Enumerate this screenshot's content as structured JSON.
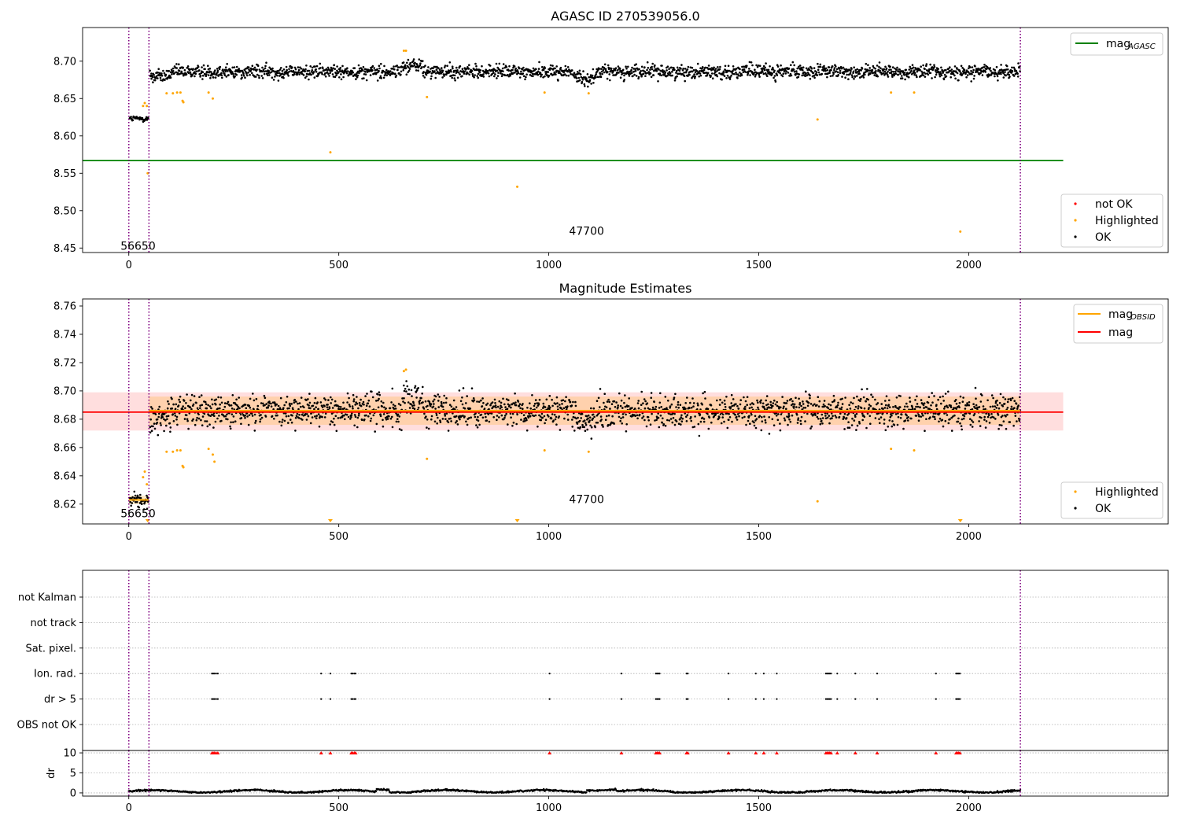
{
  "chart_data": [
    {
      "type": "scatter",
      "title": "AGASC ID 270539056.0",
      "xlim": [
        -110,
        2475
      ],
      "ylim": [
        8.444,
        8.745
      ],
      "xticks": [
        0,
        500,
        1000,
        1500,
        2000
      ],
      "yticks": [
        8.45,
        8.5,
        8.55,
        8.6,
        8.65,
        8.7
      ],
      "ytick_labels": [
        "8.45",
        "8.50",
        "8.55",
        "8.60",
        "8.65",
        "8.70"
      ],
      "mag_agasc": 8.567,
      "mag_agasc_xrange": [
        -110,
        2225
      ],
      "vlines": [
        0,
        48,
        2123
      ],
      "annotations": [
        {
          "text": "56650",
          "x": 22,
          "y": 8.452
        },
        {
          "text": "47700",
          "x": 1090,
          "y": 8.472
        }
      ],
      "ok_segments": [
        {
          "x0": 2,
          "x1": 47,
          "base": 8.623,
          "amp": 0.004
        },
        {
          "x0": 50,
          "x1": 2123,
          "base": 8.686,
          "amp": 0.009
        }
      ],
      "highlighted": [
        [
          34,
          8.64
        ],
        [
          38,
          8.644
        ],
        [
          43,
          8.64
        ],
        [
          45,
          8.55
        ],
        [
          90,
          8.657
        ],
        [
          105,
          8.657
        ],
        [
          115,
          8.658
        ],
        [
          123,
          8.658
        ],
        [
          128,
          8.647
        ],
        [
          130,
          8.645
        ],
        [
          190,
          8.658
        ],
        [
          200,
          8.65
        ],
        [
          480,
          8.578
        ],
        [
          655,
          8.714
        ],
        [
          660,
          8.714
        ],
        [
          710,
          8.652
        ],
        [
          925,
          8.532
        ],
        [
          990,
          8.658
        ],
        [
          1095,
          8.657
        ],
        [
          1640,
          8.622
        ],
        [
          1815,
          8.658
        ],
        [
          1870,
          8.658
        ],
        [
          1980,
          8.472
        ]
      ],
      "not_ok": [],
      "legend_top": [
        {
          "label": "mag",
          "sub": "AGASC",
          "color": "#008000"
        }
      ],
      "legend_bottom": [
        {
          "label": "not OK",
          "color": "#ff0000"
        },
        {
          "label": "Highlighted",
          "color": "#ffa500"
        },
        {
          "label": "OK",
          "color": "#000000"
        }
      ]
    },
    {
      "type": "scatter",
      "title": "Magnitude Estimates",
      "xlim": [
        -110,
        2475
      ],
      "ylim": [
        8.606,
        8.765
      ],
      "xticks": [
        0,
        500,
        1000,
        1500,
        2000
      ],
      "yticks": [
        8.62,
        8.64,
        8.66,
        8.68,
        8.7,
        8.72,
        8.74,
        8.76
      ],
      "ytick_labels": [
        "8.62",
        "8.64",
        "8.66",
        "8.68",
        "8.70",
        "8.72",
        "8.74",
        "8.76"
      ],
      "mag": 8.685,
      "mag_band": [
        8.672,
        8.699
      ],
      "mag_xrange": [
        -110,
        2225
      ],
      "mag_obsid_segments": [
        {
          "x0": 0,
          "x1": 47,
          "y": 8.623,
          "band": [
            8.62,
            8.626
          ]
        },
        {
          "x0": 48,
          "x1": 2123,
          "y": 8.686,
          "band": [
            8.676,
            8.696
          ]
        }
      ],
      "vlines": [
        0,
        48,
        2123
      ],
      "annotations": [
        {
          "text": "56650",
          "x": 22,
          "y": 8.613
        },
        {
          "text": "47700",
          "x": 1090,
          "y": 8.623
        }
      ],
      "ok_segments": [
        {
          "x0": 2,
          "x1": 47,
          "base": 8.623,
          "amp": 0.005
        },
        {
          "x0": 50,
          "x1": 2123,
          "base": 8.686,
          "amp": 0.011
        }
      ],
      "highlighted": [
        [
          34,
          8.639
        ],
        [
          38,
          8.643
        ],
        [
          43,
          8.634
        ],
        [
          90,
          8.657
        ],
        [
          105,
          8.657
        ],
        [
          115,
          8.658
        ],
        [
          123,
          8.658
        ],
        [
          128,
          8.647
        ],
        [
          130,
          8.646
        ],
        [
          190,
          8.659
        ],
        [
          200,
          8.655
        ],
        [
          204,
          8.65
        ],
        [
          655,
          8.714
        ],
        [
          660,
          8.715
        ],
        [
          710,
          8.652
        ],
        [
          990,
          8.658
        ],
        [
          1095,
          8.657
        ],
        [
          1640,
          8.622
        ],
        [
          1815,
          8.659
        ],
        [
          1870,
          8.658
        ]
      ],
      "clipped_markers_x": [
        45,
        480,
        925,
        1980
      ],
      "legend_top": [
        {
          "label": "mag",
          "sub": "OBSID",
          "color": "#ffa500"
        },
        {
          "label": "mag",
          "sub": "",
          "color": "#ff0000"
        }
      ],
      "legend_bottom": [
        {
          "label": "Highlighted",
          "color": "#ffa500"
        },
        {
          "label": "OK",
          "color": "#000000"
        }
      ]
    },
    {
      "type": "scatter",
      "title": "",
      "xlim": [
        -110,
        2475
      ],
      "flag_rows": [
        "not Kalman",
        "not track",
        "Sat. pixel.",
        "Ion. rad.",
        "dr > 5",
        "OBS not OK"
      ],
      "flag_x": [
        198,
        201,
        204,
        208,
        212,
        458,
        480,
        530,
        533,
        537,
        540,
        1002,
        1173,
        1255,
        1258,
        1261,
        1264,
        1328,
        1331,
        1428,
        1493,
        1512,
        1543,
        1660,
        1663,
        1666,
        1669,
        1672,
        1687,
        1730,
        1782,
        1922,
        1970,
        1973,
        1976,
        1979
      ],
      "vlines": [
        0,
        48,
        2123
      ],
      "dr": {
        "ylabel": "dr",
        "yticks": [
          0,
          5,
          10
        ],
        "ylim": [
          -0.8,
          10.6
        ],
        "cap_value": 10,
        "base": 0.4,
        "amp": 0.35
      }
    }
  ]
}
